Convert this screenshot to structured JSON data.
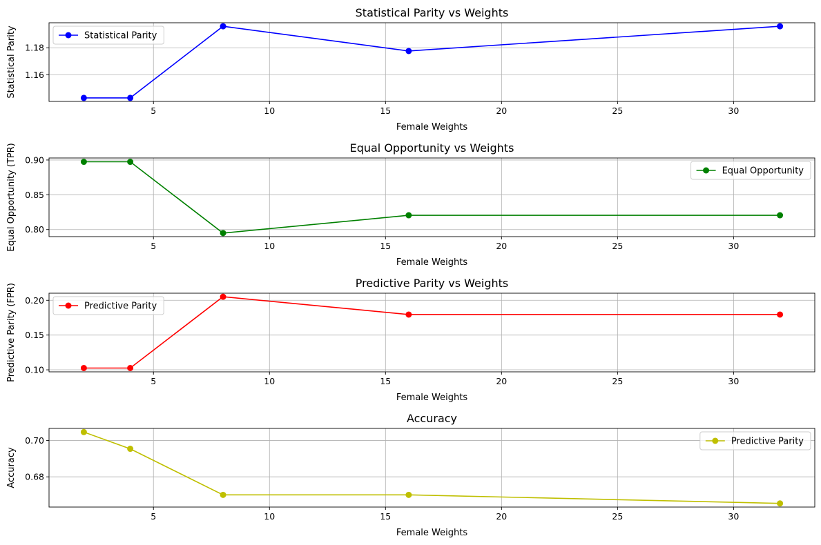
{
  "chart_data": [
    {
      "type": "line",
      "title": "Statistical Parity vs Weights",
      "xlabel": "Female Weights",
      "ylabel": "Statistical Parity",
      "xlim": [
        0.5,
        33.5
      ],
      "ylim": [
        1.1403,
        1.1985
      ],
      "xticks": [
        5,
        10,
        15,
        20,
        25,
        30
      ],
      "xtick_labels": [
        "5",
        "10",
        "15",
        "20",
        "25",
        "30"
      ],
      "yticks": [
        1.16,
        1.18
      ],
      "ytick_labels": [
        "1.16",
        "1.18"
      ],
      "grid": true,
      "legend": "upper left",
      "series": [
        {
          "name": "Statistical Parity",
          "color": "#0000ff",
          "x": [
            2,
            4,
            8,
            16,
            32
          ],
          "y": [
            1.1429,
            1.1429,
            1.1959,
            1.1776,
            1.1959
          ]
        }
      ]
    },
    {
      "type": "line",
      "title": "Equal Opportunity vs Weights",
      "xlabel": "Female Weights",
      "ylabel": "Equal Opportunity (TPR)",
      "xlim": [
        0.5,
        33.5
      ],
      "ylim": [
        0.7898,
        0.9029
      ],
      "xticks": [
        5,
        10,
        15,
        20,
        25,
        30
      ],
      "xtick_labels": [
        "5",
        "10",
        "15",
        "20",
        "25",
        "30"
      ],
      "yticks": [
        0.8,
        0.85,
        0.9
      ],
      "ytick_labels": [
        "0.80",
        "0.85",
        "0.90"
      ],
      "grid": true,
      "legend": "upper right",
      "series": [
        {
          "name": "Equal Opportunity",
          "color": "#008000",
          "x": [
            2,
            4,
            8,
            16,
            32
          ],
          "y": [
            0.8974,
            0.8974,
            0.7949,
            0.8205,
            0.8205
          ]
        }
      ]
    },
    {
      "type": "line",
      "title": "Predictive Parity vs Weights",
      "xlabel": "Female Weights",
      "ylabel": "Predictive Parity (FPR)",
      "xlim": [
        0.5,
        33.5
      ],
      "ylim": [
        0.0971,
        0.2102
      ],
      "xticks": [
        5,
        10,
        15,
        20,
        25,
        30
      ],
      "xtick_labels": [
        "5",
        "10",
        "15",
        "20",
        "25",
        "30"
      ],
      "yticks": [
        0.1,
        0.15,
        0.2
      ],
      "ytick_labels": [
        "0.10",
        "0.15",
        "0.20"
      ],
      "grid": true,
      "legend": "upper left",
      "series": [
        {
          "name": "Predictive Parity",
          "color": "#ff0000",
          "x": [
            2,
            4,
            8,
            16,
            32
          ],
          "y": [
            0.1026,
            0.1026,
            0.2051,
            0.1795,
            0.1795
          ]
        }
      ]
    },
    {
      "type": "line",
      "title": "Accuracy",
      "xlabel": "Female Weights",
      "ylabel": "Accuracy",
      "xlim": [
        0.5,
        33.5
      ],
      "ylim": [
        0.6634,
        0.7066
      ],
      "xticks": [
        5,
        10,
        15,
        20,
        25,
        30
      ],
      "xtick_labels": [
        "5",
        "10",
        "15",
        "20",
        "25",
        "30"
      ],
      "yticks": [
        0.68,
        0.7
      ],
      "ytick_labels": [
        "0.68",
        "0.70"
      ],
      "grid": true,
      "legend": "upper right",
      "series": [
        {
          "name": "Predictive Parity",
          "color": "#bfbf00",
          "x": [
            2,
            4,
            8,
            16,
            32
          ],
          "y": [
            0.7046,
            0.6954,
            0.6701,
            0.6701,
            0.6654
          ]
        }
      ]
    }
  ]
}
